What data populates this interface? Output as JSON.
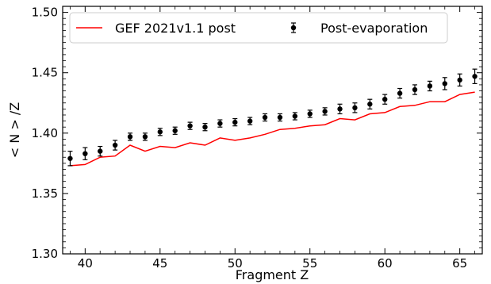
{
  "chart_data": {
    "type": "scatter",
    "xlabel": "Fragment Z",
    "ylabel": "< N > /Z",
    "xlim": [
      38.5,
      66.5
    ],
    "ylim": [
      1.3,
      1.505
    ],
    "xticks": [
      40,
      45,
      50,
      55,
      60,
      65
    ],
    "xtick_labels": [
      "40",
      "45",
      "50",
      "55",
      "60",
      "65"
    ],
    "yticks": [
      1.3,
      1.35,
      1.4,
      1.45,
      1.5
    ],
    "ytick_labels": [
      "1.30",
      "1.35",
      "1.40",
      "1.45",
      "1.50"
    ],
    "grid": false,
    "legend_position": "top",
    "series": [
      {
        "name": "GEF 2021v1.1 post",
        "kind": "line",
        "color": "#ff0000",
        "x": [
          39,
          40,
          41,
          42,
          43,
          44,
          45,
          46,
          47,
          48,
          49,
          50,
          51,
          52,
          53,
          54,
          55,
          56,
          57,
          58,
          59,
          60,
          61,
          62,
          63,
          64,
          65,
          66
        ],
        "y": [
          1.373,
          1.374,
          1.38,
          1.381,
          1.39,
          1.385,
          1.389,
          1.388,
          1.392,
          1.39,
          1.396,
          1.394,
          1.396,
          1.399,
          1.403,
          1.404,
          1.406,
          1.407,
          1.412,
          1.411,
          1.416,
          1.417,
          1.422,
          1.423,
          1.426,
          1.426,
          1.432,
          1.434
        ]
      },
      {
        "name": "Post-evaporation",
        "kind": "errorbar",
        "color": "#000000",
        "x": [
          39,
          40,
          41,
          42,
          43,
          44,
          45,
          46,
          47,
          48,
          49,
          50,
          51,
          52,
          53,
          54,
          55,
          56,
          57,
          58,
          59,
          60,
          61,
          62,
          63,
          64,
          65,
          66
        ],
        "y": [
          1.379,
          1.383,
          1.385,
          1.39,
          1.397,
          1.397,
          1.401,
          1.402,
          1.406,
          1.405,
          1.408,
          1.409,
          1.41,
          1.413,
          1.413,
          1.414,
          1.416,
          1.418,
          1.42,
          1.421,
          1.424,
          1.428,
          1.433,
          1.436,
          1.439,
          1.441,
          1.444,
          1.447
        ],
        "err": [
          0.006,
          0.005,
          0.004,
          0.004,
          0.003,
          0.003,
          0.003,
          0.003,
          0.003,
          0.003,
          0.003,
          0.003,
          0.003,
          0.003,
          0.003,
          0.003,
          0.003,
          0.003,
          0.004,
          0.004,
          0.004,
          0.004,
          0.004,
          0.004,
          0.004,
          0.005,
          0.005,
          0.006
        ]
      }
    ]
  }
}
